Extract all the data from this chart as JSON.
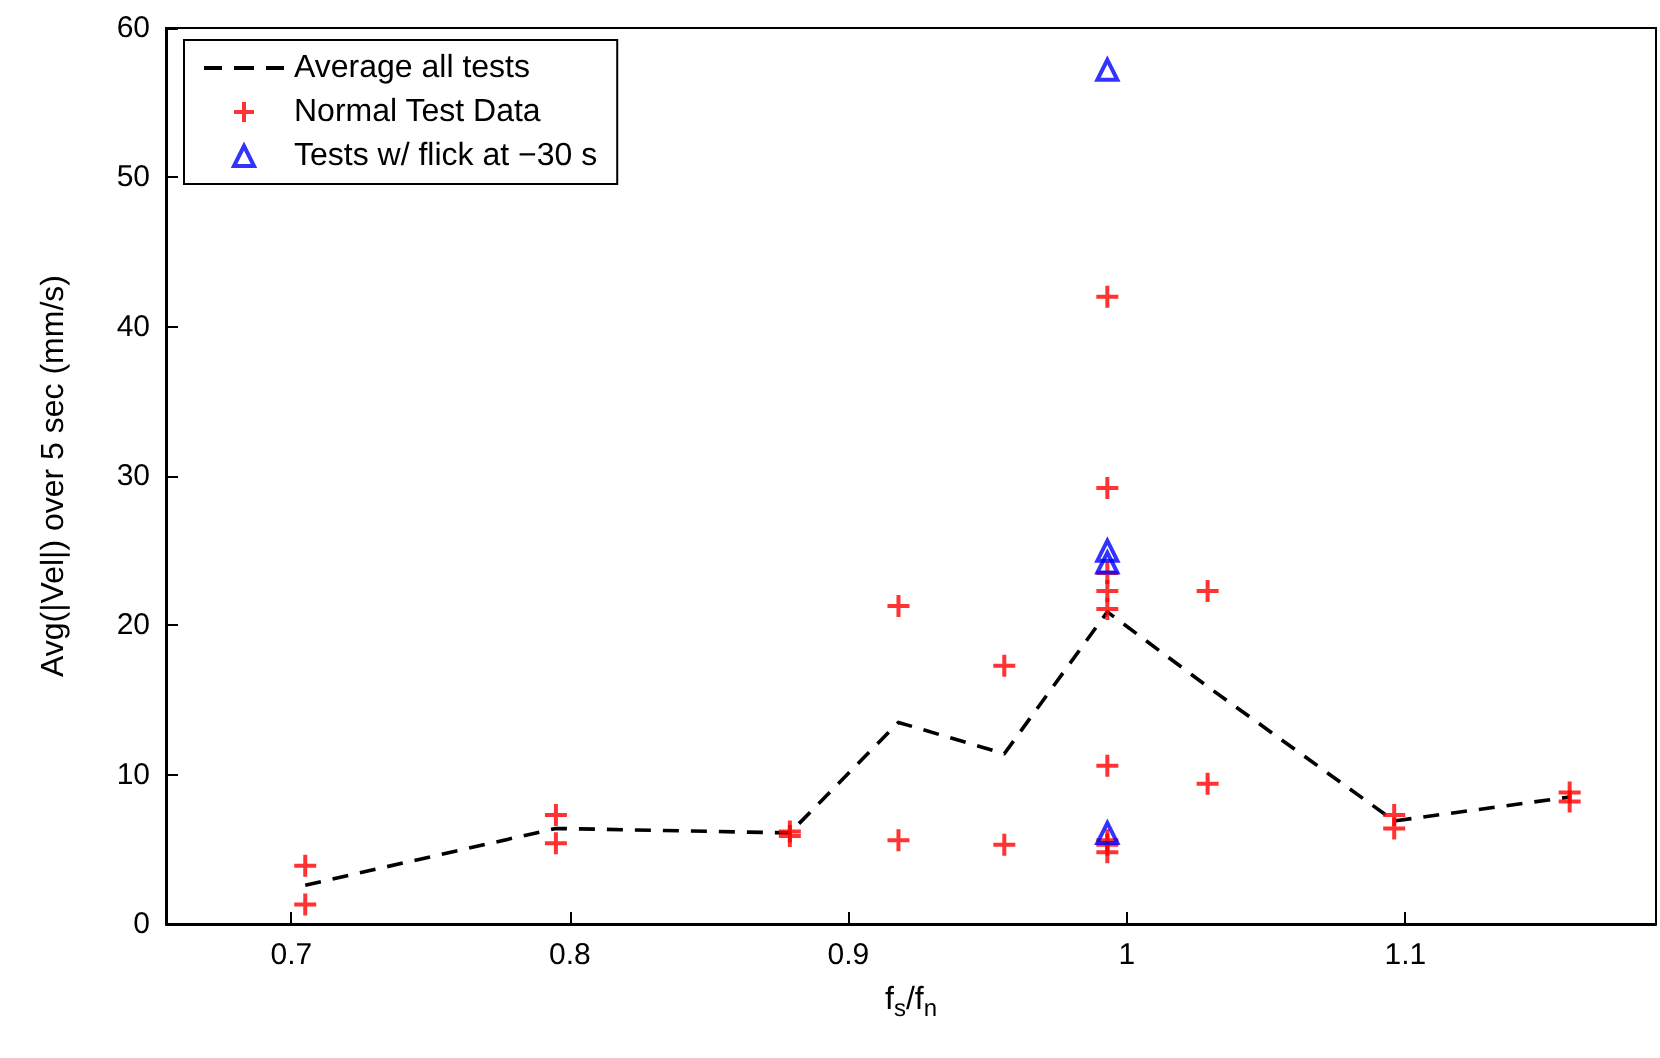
{
  "chart_data": {
    "type": "scatter",
    "xlabel": "f$_{s}$/f$_{n}$",
    "ylabel": "Avg(|Vel|) over 5 sec (mm/s)",
    "xlim": [
      0.655,
      1.19
    ],
    "xticks": [
      0.7,
      0.8,
      0.9,
      1,
      1.1
    ],
    "ylim": [
      0,
      60
    ],
    "yticks": [
      0,
      10,
      20,
      30,
      40,
      50,
      60
    ],
    "grid": false,
    "legend": "top left",
    "series": [
      {
        "name": "Average all tests",
        "type": "line",
        "color": "#000000",
        "line_style": "dashed",
        "marker": "none",
        "x": [
          0.705,
          0.795,
          0.879,
          0.918,
          0.956,
          0.993,
          1.029,
          1.096,
          1.159
        ],
        "values": [
          2.6,
          6.4,
          6.1,
          13.5,
          11.4,
          20.9,
          15.9,
          6.9,
          8.5
        ]
      },
      {
        "name": "Normal Test Data",
        "color": "#ff0000",
        "marker": "cross",
        "x": [
          0.705,
          0.705,
          0.795,
          0.795,
          0.879,
          0.879,
          0.918,
          0.918,
          0.956,
          0.956,
          0.993,
          0.993,
          0.993,
          0.993,
          0.993,
          0.993,
          0.993,
          0.993,
          0.993,
          1.029,
          1.029,
          1.096,
          1.096,
          1.159,
          1.159
        ],
        "values": [
          3.9,
          1.3,
          7.3,
          5.4,
          6.2,
          5.9,
          21.3,
          5.6,
          17.3,
          5.3,
          42.0,
          29.2,
          23.5,
          22.3,
          21.1,
          10.6,
          5.6,
          5.3,
          4.8,
          22.3,
          9.4,
          7.3,
          6.4,
          8.8,
          8.2
        ]
      },
      {
        "name": "Tests w/ flick at −30 s",
        "color": "#0000ff",
        "marker": "triangle",
        "x": [
          0.993,
          0.993,
          0.993,
          0.993
        ],
        "values": [
          57.2,
          25.0,
          24.2,
          6.1
        ]
      }
    ]
  }
}
